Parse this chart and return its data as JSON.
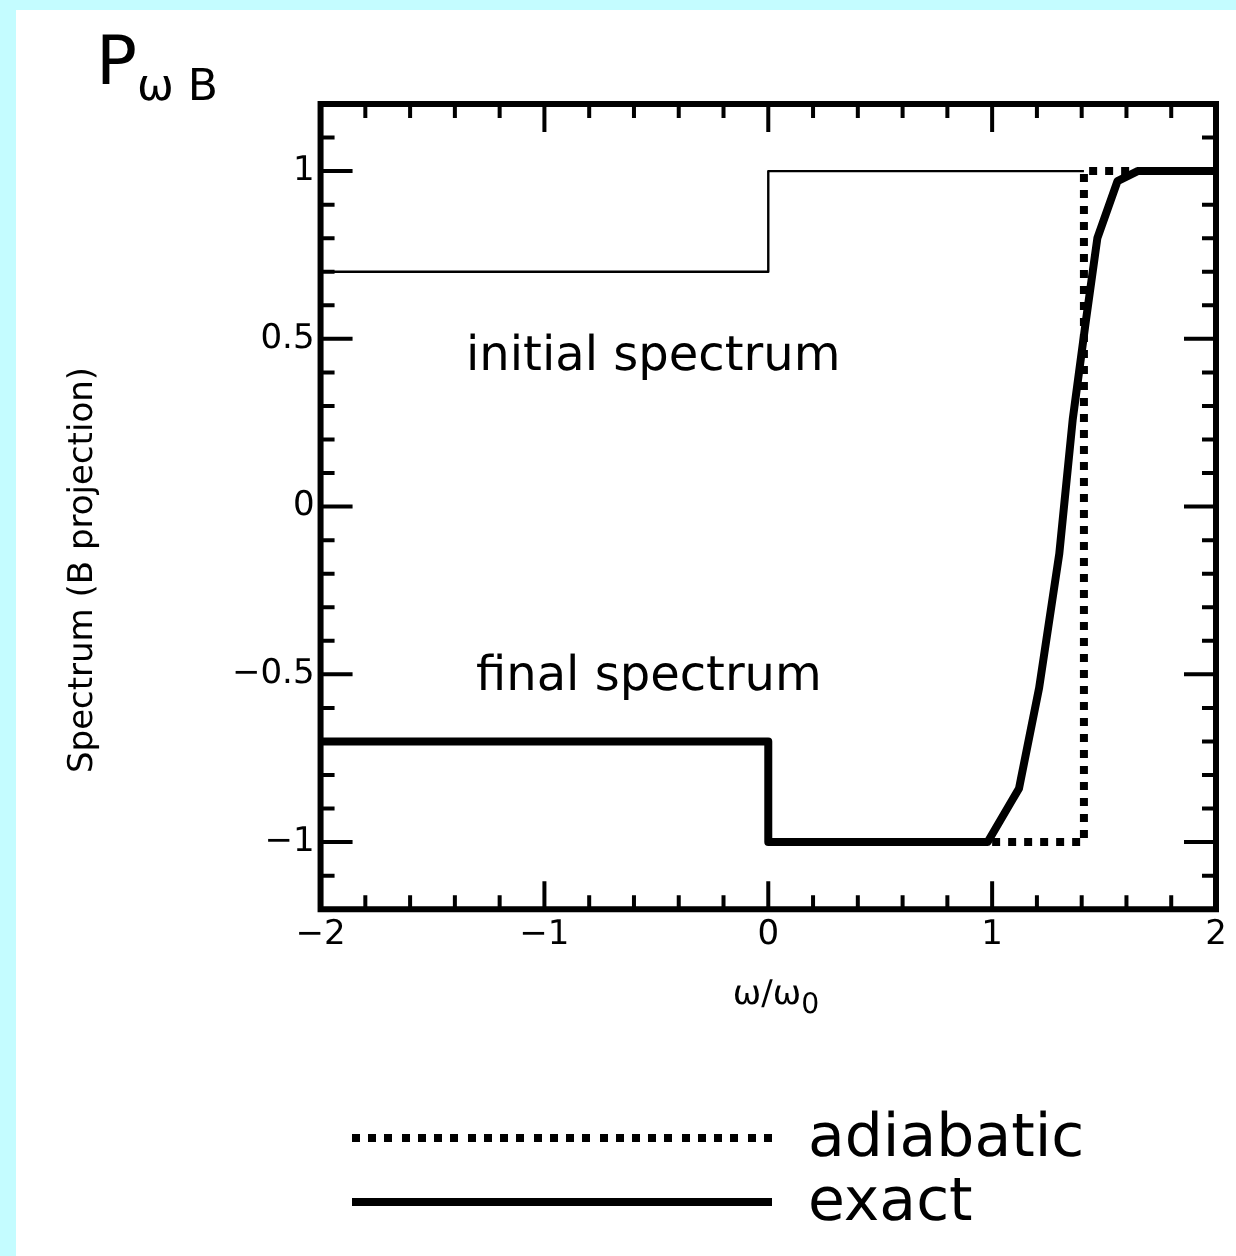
{
  "chart_data": {
    "type": "line",
    "title": "P$_{ω B}$",
    "xlabel": "ω/ω$_{0}$",
    "ylabel": "Spectrum (B projection)",
    "xlim": [
      -2,
      2
    ],
    "ylim": [
      -1.2,
      1.2
    ],
    "xticks": [
      -2,
      {
        "value": -1.8,
        "label": null
      },
      {
        "value": -1.6,
        "label": null
      },
      {
        "value": -1.4,
        "label": null
      },
      {
        "value": -1.2,
        "label": null
      },
      -1,
      {
        "value": -0.8,
        "label": null
      },
      {
        "value": -0.6,
        "label": null
      },
      {
        "value": -0.4,
        "label": null
      },
      {
        "value": -0.2,
        "label": null
      },
      0,
      {
        "value": 0.2,
        "label": null
      },
      {
        "value": 0.4,
        "label": null
      },
      {
        "value": 0.6,
        "label": null
      },
      {
        "value": 0.8,
        "label": null
      },
      1,
      {
        "value": 1.2,
        "label": null
      },
      {
        "value": 1.4,
        "label": null
      },
      {
        "value": 1.6,
        "label": null
      },
      {
        "value": 1.8,
        "label": null
      },
      2
    ],
    "yticks": [
      {
        "value": -1.1,
        "label": null
      },
      -1,
      {
        "value": -0.9,
        "label": null
      },
      {
        "value": -0.8,
        "label": null
      },
      {
        "value": -0.7,
        "label": null
      },
      {
        "value": -0.6,
        "label": null
      },
      -0.5,
      {
        "value": -0.4,
        "label": null
      },
      {
        "value": -0.3,
        "label": null
      },
      {
        "value": -0.2,
        "label": null
      },
      {
        "value": -0.1,
        "label": null
      },
      0,
      {
        "value": 0.1,
        "label": null
      },
      {
        "value": 0.2,
        "label": null
      },
      {
        "value": 0.3,
        "label": null
      },
      {
        "value": 0.4,
        "label": null
      },
      0.5,
      {
        "value": 0.6,
        "label": null
      },
      {
        "value": 0.7,
        "label": null
      },
      {
        "value": 0.8,
        "label": null
      },
      {
        "value": 0.9,
        "label": null
      },
      1,
      {
        "value": 1.1,
        "label": null
      }
    ],
    "series": [
      {
        "color": "#000000",
        "line_style": "solid",
        "x": [
          -2,
          0,
          0,
          1.41
        ],
        "values": [
          0.7,
          0.7,
          1,
          1
        ]
      },
      {
        "name": "adiabatic",
        "color": "#000000",
        "line_style": "dotted",
        "x": [
          1.0,
          1.41,
          1.41,
          2
        ],
        "values": [
          -1,
          -1,
          1,
          1
        ]
      },
      {
        "name": "exact",
        "color": "#000000",
        "line_style": "solid",
        "x": [
          -2,
          0,
          0,
          0.98,
          1.12,
          1.21,
          1.3,
          1.36,
          1.42,
          1.47,
          1.56,
          1.65,
          2
        ],
        "values": [
          -0.7,
          -0.7,
          -1,
          -1,
          -0.84,
          -0.54,
          -0.14,
          0.26,
          0.56,
          0.8,
          0.97,
          1,
          1
        ]
      }
    ],
    "annotations": [
      "initial spectrum",
      "final spectrum"
    ],
    "legend": "bottom",
    "marker": "none",
    "grid": false
  }
}
